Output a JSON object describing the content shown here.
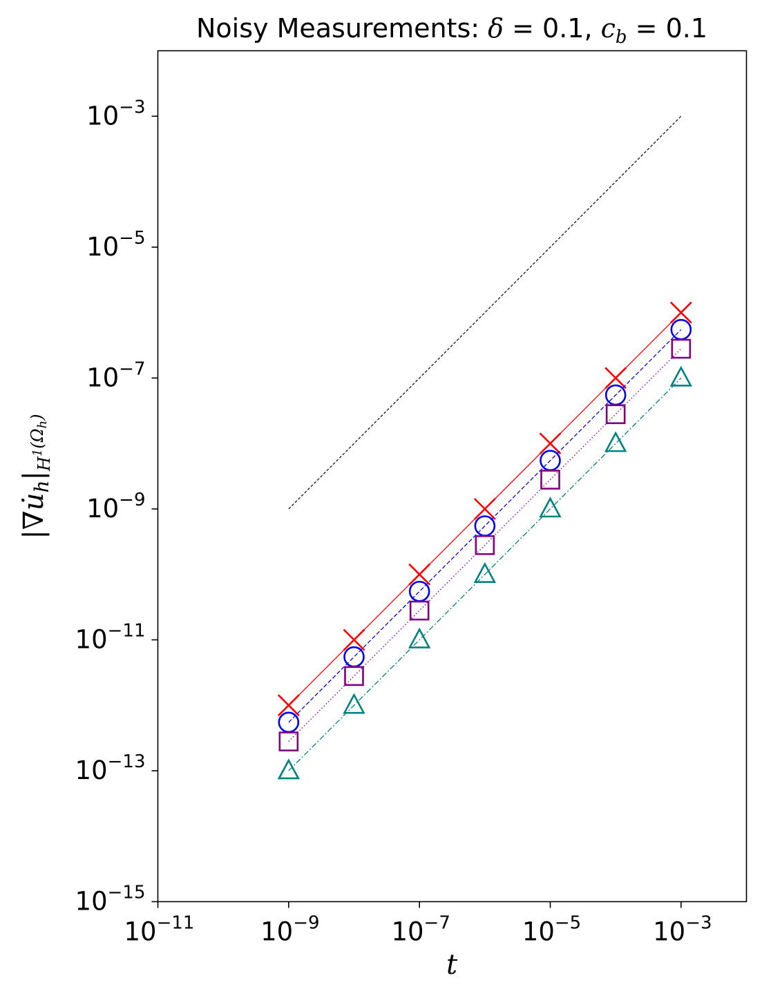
{
  "chart_data": {
    "type": "scatter",
    "title": "Noisy Measurements: δ = 0.1, c_b = 0.1",
    "title_parts": {
      "prefix": "Noisy Measurements: ",
      "delta_symbol": "δ",
      "delta_eq": " = 0.1, ",
      "cb_symbol": "c",
      "cb_sub": "b",
      "cb_eq": " = 0.1"
    },
    "xlabel": "t",
    "ylabel": "|∇u̇h|H¹(Ωh)",
    "x_scale": "log",
    "y_scale": "log",
    "xlim": [
      1e-11,
      0.01
    ],
    "ylim": [
      1e-15,
      0.01
    ],
    "x_ticks": [
      {
        "base": "10",
        "exp": "−11",
        "value": 1e-11
      },
      {
        "base": "10",
        "exp": "−9",
        "value": 1e-09
      },
      {
        "base": "10",
        "exp": "−7",
        "value": 1e-07
      },
      {
        "base": "10",
        "exp": "−5",
        "value": 1e-05
      },
      {
        "base": "10",
        "exp": "−3",
        "value": 0.001
      }
    ],
    "y_ticks": [
      {
        "base": "10",
        "exp": "−15",
        "value": 1e-15
      },
      {
        "base": "10",
        "exp": "−13",
        "value": 1e-13
      },
      {
        "base": "10",
        "exp": "−11",
        "value": 1e-11
      },
      {
        "base": "10",
        "exp": "−9",
        "value": 1e-09
      },
      {
        "base": "10",
        "exp": "−7",
        "value": 1e-07
      },
      {
        "base": "10",
        "exp": "−5",
        "value": 1e-05
      },
      {
        "base": "10",
        "exp": "−3",
        "value": 0.001
      }
    ],
    "x": [
      1e-09,
      1e-08,
      1e-07,
      1e-06,
      1e-05,
      0.0001,
      0.001
    ],
    "series": [
      {
        "marker": "x",
        "color": "#ff0000",
        "line": "solid",
        "values": [
          1e-12,
          1e-11,
          1e-10,
          1e-09,
          1e-08,
          1e-07,
          1e-06
        ]
      },
      {
        "marker": "circle",
        "color": "#0000ee",
        "line": "dashed",
        "values": [
          5.5e-13,
          5.5e-12,
          5.5e-11,
          5.5e-10,
          5.5e-09,
          5.5e-08,
          5.5e-07
        ]
      },
      {
        "marker": "square",
        "color": "#800080",
        "line": "dotted",
        "values": [
          2.8e-13,
          2.8e-12,
          2.8e-11,
          2.8e-10,
          2.8e-09,
          2.8e-08,
          2.8e-07
        ]
      },
      {
        "marker": "triangle",
        "color": "#008080",
        "line": "dashdot",
        "values": [
          1e-13,
          1e-12,
          1e-11,
          1e-10,
          1e-09,
          1e-08,
          1e-07
        ]
      }
    ],
    "reference_line": {
      "color": "#000000",
      "line": "dashed",
      "x": [
        1e-09,
        0.001
      ],
      "y": [
        1e-09,
        0.001
      ]
    },
    "grid": false,
    "legend": "none"
  }
}
